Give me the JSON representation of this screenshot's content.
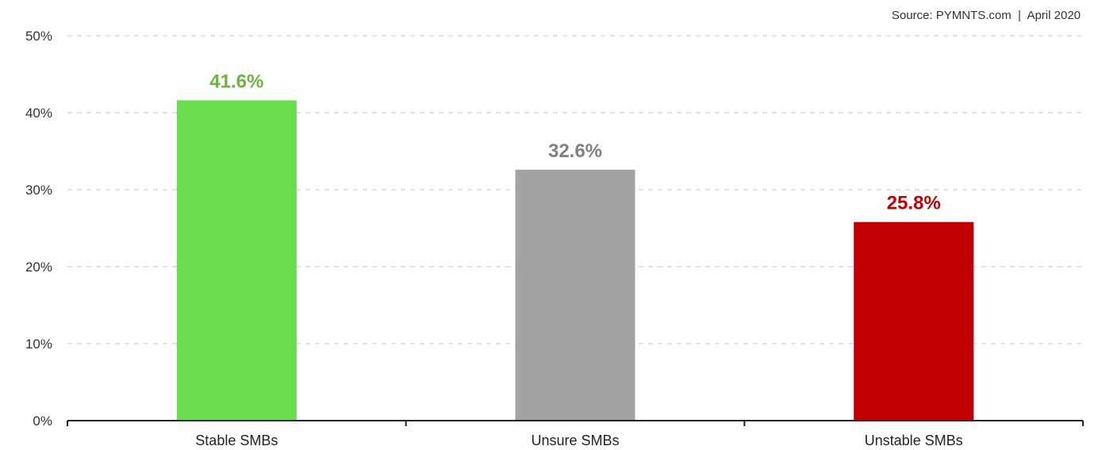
{
  "source": "Source: PYMNTS.com  |  April 2020",
  "chart_data": {
    "type": "bar",
    "categories": [
      "Stable SMBs",
      "Unsure SMBs",
      "Unstable SMBs"
    ],
    "values": [
      41.6,
      32.6,
      25.8
    ],
    "value_labels": [
      "41.6%",
      "32.6%",
      "25.8%"
    ],
    "colors": [
      "#6CDC4F",
      "#A3A3A3",
      "#C00000"
    ],
    "label_colors": [
      "#6CB33F",
      "#808080",
      "#C00000"
    ],
    "ylim": [
      0,
      50
    ],
    "yticks": [
      0,
      10,
      20,
      30,
      40,
      50
    ],
    "ytick_labels": [
      "0%",
      "10%",
      "20%",
      "30%",
      "40%",
      "50%"
    ],
    "grid": true,
    "title": "",
    "xlabel": "",
    "ylabel": ""
  }
}
